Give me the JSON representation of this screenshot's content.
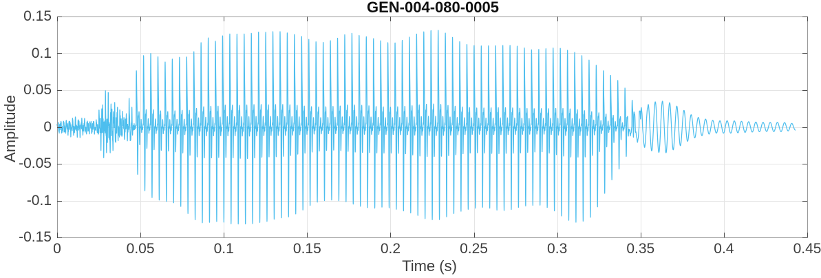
{
  "figure": {
    "background": "#ffffff"
  },
  "chart_data": {
    "type": "line",
    "subtype": "audio-waveform",
    "title": "GEN-004-080-0005",
    "xlabel": "Time (s)",
    "ylabel": "Amplitude",
    "xlim": [
      0,
      0.45
    ],
    "ylim": [
      -0.15,
      0.15
    ],
    "grid": true,
    "legend": null,
    "xticks": [
      0,
      0.05,
      0.1,
      0.15,
      0.2,
      0.25,
      0.3,
      0.35,
      0.4,
      0.45
    ],
    "xtick_labels": [
      "0",
      "0.05",
      "0.1",
      "0.15",
      "0.2",
      "0.25",
      "0.3",
      "0.35",
      "0.4",
      "0.45"
    ],
    "yticks": [
      0.15,
      0.1,
      0.05,
      0,
      -0.05,
      -0.1,
      -0.15
    ],
    "ytick_labels": [
      "0.15",
      "0.1",
      "0.05",
      "0",
      "-0.05",
      "-0.1",
      "-0.15"
    ],
    "style": {
      "line_color": "#4DBEEE",
      "grid_color": "#e4e4e4",
      "axis_box_color": "#9a9a9a",
      "tick_color": "#4d4d4d",
      "tick_label_color": "#3d3d3d",
      "label_color": "#3d3d3d",
      "title_color": "#101010",
      "background": "#ffffff"
    },
    "waveform": {
      "duration_s": 0.443,
      "f0_hz": 232,
      "unvoiced_until_s": 0.044,
      "sine_tail_from_s": 0.338,
      "envelope": [
        [
          0.0,
          0.01,
          -0.009
        ],
        [
          0.006,
          0.012,
          -0.011
        ],
        [
          0.012,
          0.015,
          -0.013
        ],
        [
          0.018,
          0.012,
          -0.011
        ],
        [
          0.024,
          0.011,
          -0.01
        ],
        [
          0.026,
          0.038,
          -0.032
        ],
        [
          0.029,
          0.05,
          -0.045
        ],
        [
          0.032,
          0.048,
          -0.042
        ],
        [
          0.035,
          0.038,
          -0.032
        ],
        [
          0.038,
          0.028,
          -0.024
        ],
        [
          0.041,
          0.022,
          -0.02
        ],
        [
          0.044,
          0.045,
          -0.035
        ],
        [
          0.047,
          0.075,
          -0.055
        ],
        [
          0.05,
          0.095,
          -0.08
        ],
        [
          0.055,
          0.103,
          -0.095
        ],
        [
          0.06,
          0.099,
          -0.101
        ],
        [
          0.065,
          0.092,
          -0.106
        ],
        [
          0.07,
          0.099,
          -0.111
        ],
        [
          0.075,
          0.102,
          -0.116
        ],
        [
          0.08,
          0.1,
          -0.126
        ],
        [
          0.085,
          0.112,
          -0.13
        ],
        [
          0.09,
          0.117,
          -0.127
        ],
        [
          0.095,
          0.11,
          -0.121
        ],
        [
          0.1,
          0.118,
          -0.121
        ],
        [
          0.105,
          0.12,
          -0.125
        ],
        [
          0.11,
          0.122,
          -0.129
        ],
        [
          0.115,
          0.126,
          -0.132
        ],
        [
          0.12,
          0.13,
          -0.13
        ],
        [
          0.125,
          0.128,
          -0.128
        ],
        [
          0.13,
          0.127,
          -0.124
        ],
        [
          0.135,
          0.126,
          -0.121
        ],
        [
          0.14,
          0.125,
          -0.119
        ],
        [
          0.145,
          0.125,
          -0.116
        ],
        [
          0.15,
          0.124,
          -0.114
        ],
        [
          0.155,
          0.124,
          -0.111
        ],
        [
          0.16,
          0.126,
          -0.109
        ],
        [
          0.165,
          0.128,
          -0.107
        ],
        [
          0.17,
          0.128,
          -0.106
        ],
        [
          0.175,
          0.13,
          -0.105
        ],
        [
          0.18,
          0.124,
          -0.105
        ],
        [
          0.185,
          0.12,
          -0.106
        ],
        [
          0.19,
          0.117,
          -0.108
        ],
        [
          0.195,
          0.115,
          -0.109
        ],
        [
          0.2,
          0.114,
          -0.11
        ],
        [
          0.205,
          0.116,
          -0.112
        ],
        [
          0.21,
          0.118,
          -0.113
        ],
        [
          0.215,
          0.12,
          -0.115
        ],
        [
          0.22,
          0.122,
          -0.117
        ],
        [
          0.225,
          0.124,
          -0.118
        ],
        [
          0.23,
          0.125,
          -0.12
        ],
        [
          0.235,
          0.123,
          -0.12
        ],
        [
          0.24,
          0.121,
          -0.12
        ],
        [
          0.245,
          0.12,
          -0.119
        ],
        [
          0.25,
          0.118,
          -0.118
        ],
        [
          0.255,
          0.116,
          -0.116
        ],
        [
          0.26,
          0.114,
          -0.115
        ],
        [
          0.265,
          0.113,
          -0.115
        ],
        [
          0.27,
          0.112,
          -0.114
        ],
        [
          0.275,
          0.112,
          -0.113
        ],
        [
          0.28,
          0.111,
          -0.112
        ],
        [
          0.285,
          0.11,
          -0.111
        ],
        [
          0.29,
          0.11,
          -0.11
        ],
        [
          0.295,
          0.108,
          -0.112
        ],
        [
          0.3,
          0.105,
          -0.115
        ],
        [
          0.305,
          0.1,
          -0.118
        ],
        [
          0.31,
          0.095,
          -0.12
        ],
        [
          0.315,
          0.09,
          -0.12
        ],
        [
          0.32,
          0.085,
          -0.118
        ],
        [
          0.325,
          0.08,
          -0.104
        ],
        [
          0.33,
          0.074,
          -0.084
        ],
        [
          0.335,
          0.067,
          -0.064
        ],
        [
          0.34,
          0.057,
          -0.051
        ],
        [
          0.345,
          0.047,
          -0.042
        ],
        [
          0.35,
          0.038,
          -0.035
        ],
        [
          0.355,
          0.033,
          -0.032
        ],
        [
          0.36,
          0.035,
          -0.035
        ],
        [
          0.365,
          0.037,
          -0.037
        ],
        [
          0.37,
          0.033,
          -0.033
        ],
        [
          0.375,
          0.026,
          -0.026
        ],
        [
          0.38,
          0.018,
          -0.018
        ],
        [
          0.385,
          0.013,
          -0.013
        ],
        [
          0.39,
          0.01,
          -0.01
        ],
        [
          0.395,
          0.008,
          -0.008
        ],
        [
          0.405,
          0.008,
          -0.008
        ],
        [
          0.415,
          0.007,
          -0.007
        ],
        [
          0.425,
          0.006,
          -0.006
        ],
        [
          0.435,
          0.006,
          -0.006
        ],
        [
          0.443,
          0.004,
          -0.004
        ]
      ]
    }
  }
}
